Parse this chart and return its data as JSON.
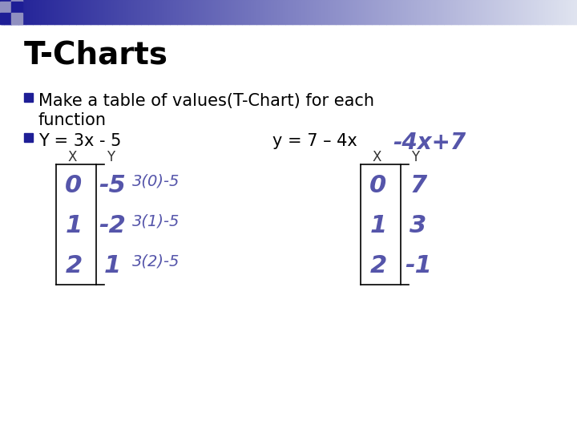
{
  "title": "T-Charts",
  "bullet1_line1": "Make a table of values(T-Chart) for each",
  "bullet1_line2": "function",
  "bullet2_left": "Y = 3x - 5",
  "bullet2_right": "y = 7 – 4x",
  "bullet2_handwritten": "-4x+7",
  "table1_headers": [
    "X",
    "Y"
  ],
  "table1_rows": [
    [
      "0",
      "-5",
      "3(0)-5"
    ],
    [
      "1",
      "-2",
      "3(1)-5"
    ],
    [
      "2",
      "1",
      "3(2)-5"
    ]
  ],
  "table2_headers": [
    "X",
    "Y"
  ],
  "table2_rows": [
    [
      "0",
      "7"
    ],
    [
      "1",
      "3"
    ],
    [
      "2",
      "-1"
    ]
  ],
  "bg_color": "#ffffff",
  "title_color": "#000000",
  "bullet_color": "#000000",
  "handwritten_color": "#5555aa",
  "bullet_square_color": "#1e1e96",
  "top_dark_color": "#1e1e96",
  "top_light_color": "#d0d4e8"
}
